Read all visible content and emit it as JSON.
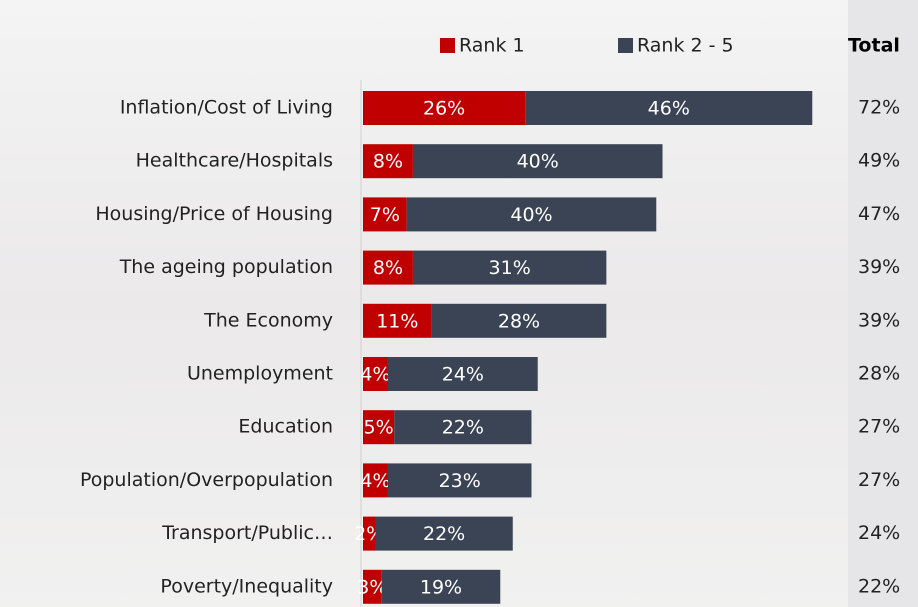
{
  "chart_data": {
    "type": "bar",
    "orientation": "horizontal",
    "stacked": true,
    "categories": [
      "Inflation/Cost of Living",
      "Healthcare/Hospitals",
      "Housing/Price of Housing",
      "The ageing population",
      "The Economy",
      "Unemployment",
      "Education",
      "Population/Overpopulation",
      "Transport/Public…",
      "Poverty/Inequality"
    ],
    "series": [
      {
        "name": "Rank 1",
        "color": "#c00000",
        "values": [
          26,
          8,
          7,
          8,
          11,
          4,
          5,
          4,
          2,
          3
        ],
        "value_labels": [
          "26%",
          "8%",
          "7%",
          "8%",
          "11%",
          "4%",
          "5%",
          "4%",
          "2%",
          "3%"
        ]
      },
      {
        "name": "Rank 2 - 5",
        "color": "#3b4455",
        "values": [
          46,
          40,
          40,
          31,
          28,
          24,
          22,
          23,
          22,
          19
        ],
        "value_labels": [
          "46%",
          "40%",
          "40%",
          "31%",
          "28%",
          "24%",
          "22%",
          "23%",
          "22%",
          "19%"
        ]
      }
    ],
    "total": {
      "title": "Total",
      "values": [
        72,
        49,
        47,
        39,
        39,
        28,
        27,
        27,
        24,
        22
      ],
      "value_labels": [
        "72%",
        "49%",
        "47%",
        "39%",
        "39%",
        "28%",
        "27%",
        "27%",
        "24%",
        "22%"
      ]
    }
  }
}
